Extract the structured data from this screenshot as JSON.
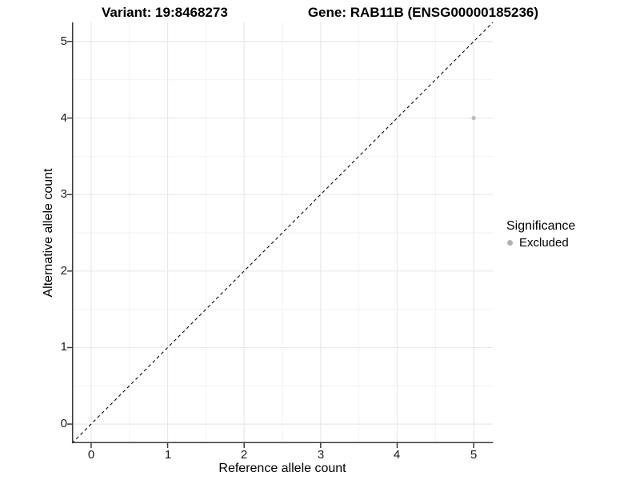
{
  "header": {
    "variant_title": "Variant: 19:8468273",
    "gene_title": "Gene: RAB11B (ENSG00000185236)"
  },
  "axes": {
    "x_title": "Reference allele count",
    "y_title": "Alternative allele count"
  },
  "legend": {
    "title": "Significance",
    "entries": [
      {
        "label": "Excluded",
        "marker": "circle",
        "color": "#b0b0b0"
      }
    ]
  },
  "chart_data": {
    "type": "scatter",
    "title": "Variant: 19:8468273    Gene: RAB11B (ENSG00000185236)",
    "xlabel": "Reference allele count",
    "ylabel": "Alternative allele count",
    "xlim": [
      -0.25,
      5.25
    ],
    "ylim": [
      -0.25,
      5.25
    ],
    "x_ticks": [
      0,
      1,
      2,
      3,
      4,
      5
    ],
    "y_ticks": [
      0,
      1,
      2,
      3,
      4,
      5
    ],
    "x_tick_labels": [
      "0",
      "1",
      "2",
      "3",
      "4",
      "5"
    ],
    "y_tick_labels": [
      "0",
      "1",
      "2",
      "3",
      "4",
      "5"
    ],
    "grid": {
      "major": true,
      "minor": true
    },
    "legend_position": "right",
    "series": [
      {
        "name": "Excluded",
        "marker": "circle",
        "color": "#bdbdbd",
        "points": [
          {
            "x": 5,
            "y": 4
          }
        ]
      }
    ],
    "reference_line": {
      "kind": "identity",
      "from": [
        -0.25,
        -0.25
      ],
      "to": [
        5.25,
        5.25
      ],
      "style": "dashed",
      "color": "#1a1a1a"
    },
    "colors": {
      "grid_major": "#e8e8e8",
      "grid_minor": "#f2f2f2",
      "axis_line": "#3c3c3c",
      "point": "#bdbdbd",
      "legend_dot": "#b0b0b0"
    }
  }
}
